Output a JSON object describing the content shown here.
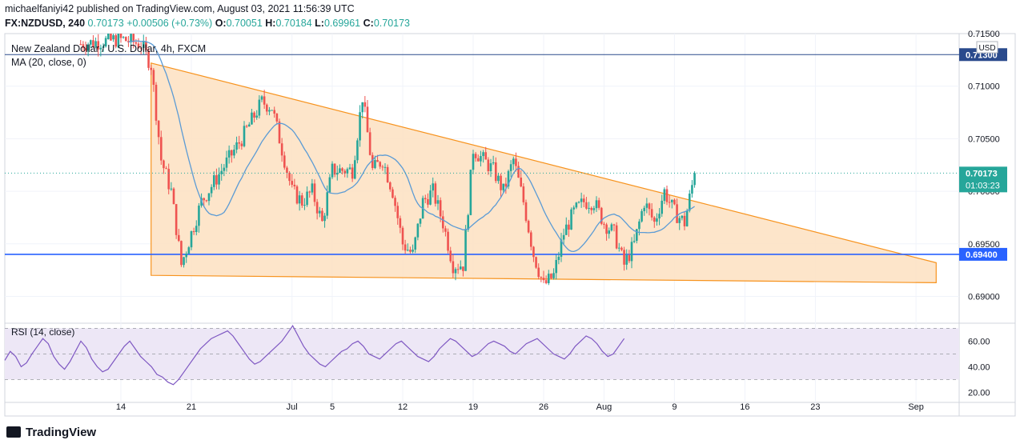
{
  "header": {
    "publish_line": "michaelfaniyi42 published on TradingView.com, August 03, 2021 11:56:39 UTC",
    "symbol": "FX:NZDUSD, 240",
    "last": "0.70173",
    "change": "+0.00506 (+0.73%)",
    "o_label": "O:",
    "o": "0.70051",
    "h_label": "H:",
    "h": "0.70184",
    "l_label": "L:",
    "l": "0.69961",
    "c_label": "C:",
    "c": "0.70173"
  },
  "legend": {
    "title": "New Zealand Dollar / U.S. Dollar, 4h, FXCM",
    "ma": "MA (20, close, 0)",
    "rsi": "RSI (14, close)"
  },
  "footer": {
    "brand": "TradingView"
  },
  "colors": {
    "up": "#26a69a",
    "down": "#ef5350",
    "ma": "#5b9bd5",
    "triangle_fill": "#fde2c4",
    "triangle_stroke": "#f7931e",
    "support": "#2962ff",
    "resistance": "#2a4a8c",
    "rsi": "#7e57c2",
    "rsi_band": "#ede7f6"
  },
  "chart_data": [
    {
      "type": "candlestick",
      "title": "New Zealand Dollar / U.S. Dollar, 4h, FXCM",
      "currency": "USD",
      "x_ticks": [
        "14",
        "21",
        "Jul",
        "5",
        "12",
        "19",
        "26",
        "Aug",
        "9",
        "16",
        "23",
        "Sep"
      ],
      "y_ticks": [
        "0.71500",
        "0.71000",
        "0.70500",
        "0.70000",
        "0.69500",
        "0.69000"
      ],
      "ylim": [
        0.6876,
        0.715
      ],
      "last_price": {
        "label": "0.70173",
        "value": 0.70173,
        "countdown": "01:03:23"
      },
      "horizontal_lines": [
        {
          "label": "0.71300",
          "value": 0.713
        },
        {
          "label": "0.69400",
          "value": 0.694
        }
      ],
      "triangle": [
        {
          "x": "Jun 17",
          "y": 0.7122
        },
        {
          "x": "Sep 3",
          "y": 0.6932
        },
        {
          "x": "Sep 3",
          "y": 0.6913
        },
        {
          "x": "Jun 17",
          "y": 0.692
        }
      ],
      "close_path": [
        {
          "x": "Jun 10",
          "y": 0.714
        },
        {
          "x": "Jun 14",
          "y": 0.7145
        },
        {
          "x": "Jun 16",
          "y": 0.714
        },
        {
          "x": "Jun 17",
          "y": 0.712
        },
        {
          "x": "Jun 18",
          "y": 0.703
        },
        {
          "x": "Jun 19",
          "y": 0.7
        },
        {
          "x": "Jun 20",
          "y": 0.693
        },
        {
          "x": "Jun 21",
          "y": 0.696
        },
        {
          "x": "Jun 22",
          "y": 0.699
        },
        {
          "x": "Jun 24",
          "y": 0.702
        },
        {
          "x": "Jun 26",
          "y": 0.705
        },
        {
          "x": "Jun 28",
          "y": 0.7085
        },
        {
          "x": "Jun 29",
          "y": 0.708
        },
        {
          "x": "Jun 30",
          "y": 0.704
        },
        {
          "x": "Jul 1",
          "y": 0.7
        },
        {
          "x": "Jul 2",
          "y": 0.699
        },
        {
          "x": "Jul 3",
          "y": 0.7
        },
        {
          "x": "Jul 4",
          "y": 0.697
        },
        {
          "x": "Jul 5",
          "y": 0.702
        },
        {
          "x": "Jul 7",
          "y": 0.702
        },
        {
          "x": "Jul 8",
          "y": 0.709
        },
        {
          "x": "Jul 9",
          "y": 0.702
        },
        {
          "x": "Jul 10",
          "y": 0.703
        },
        {
          "x": "Jul 11",
          "y": 0.7
        },
        {
          "x": "Jul 12",
          "y": 0.695
        },
        {
          "x": "Jul 13",
          "y": 0.694
        },
        {
          "x": "Jul 14",
          "y": 0.699
        },
        {
          "x": "Jul 15",
          "y": 0.7
        },
        {
          "x": "Jul 16",
          "y": 0.697
        },
        {
          "x": "Jul 17",
          "y": 0.693
        },
        {
          "x": "Jul 18",
          "y": 0.693
        },
        {
          "x": "Jul 19",
          "y": 0.704
        },
        {
          "x": "Jul 20",
          "y": 0.703
        },
        {
          "x": "Jul 21",
          "y": 0.702
        },
        {
          "x": "Jul 22",
          "y": 0.7
        },
        {
          "x": "Jul 23",
          "y": 0.703
        },
        {
          "x": "Jul 24",
          "y": 0.699
        },
        {
          "x": "Jul 25",
          "y": 0.694
        },
        {
          "x": "Jul 26",
          "y": 0.691
        },
        {
          "x": "Jul 27",
          "y": 0.692
        },
        {
          "x": "Jul 28",
          "y": 0.696
        },
        {
          "x": "Jul 29",
          "y": 0.698
        },
        {
          "x": "Jul 30",
          "y": 0.699
        },
        {
          "x": "Jul 31",
          "y": 0.699
        },
        {
          "x": "Aug 1",
          "y": 0.697
        },
        {
          "x": "Aug 2",
          "y": 0.696
        },
        {
          "x": "Aug 3",
          "y": 0.693
        },
        {
          "x": "Aug 4",
          "y": 0.695
        },
        {
          "x": "Aug 5",
          "y": 0.699
        },
        {
          "x": "Aug 6",
          "y": 0.697
        },
        {
          "x": "Aug 7",
          "y": 0.7
        },
        {
          "x": "Aug 8",
          "y": 0.698
        },
        {
          "x": "Aug 9",
          "y": 0.697
        },
        {
          "x": "Aug 10",
          "y": 0.7017
        }
      ]
    },
    {
      "type": "line",
      "title": "RSI (14, close)",
      "y_ticks": [
        "60.00",
        "40.00",
        "20.00"
      ],
      "ylim": [
        14,
        74
      ],
      "bands": [
        30,
        50,
        70
      ],
      "values": [
        45,
        52,
        48,
        40,
        43,
        50,
        56,
        62,
        58,
        48,
        42,
        38,
        44,
        52,
        60,
        55,
        46,
        40,
        36,
        38,
        44,
        50,
        56,
        60,
        54,
        48,
        44,
        40,
        34,
        32,
        28,
        26,
        30,
        36,
        42,
        48,
        54,
        58,
        62,
        64,
        66,
        68,
        64,
        58,
        52,
        46,
        42,
        44,
        48,
        52,
        56,
        60,
        66,
        72,
        64,
        56,
        50,
        46,
        42,
        40,
        44,
        48,
        52,
        54,
        58,
        60,
        56,
        50,
        48,
        46,
        50,
        54,
        58,
        60,
        56,
        52,
        48,
        46,
        44,
        48,
        54,
        58,
        62,
        60,
        56,
        52,
        48,
        50,
        54,
        58,
        60,
        58,
        56,
        52,
        50,
        54,
        58,
        60,
        62,
        58,
        54,
        50,
        48,
        46,
        50,
        56,
        60,
        64,
        62,
        58,
        52,
        48,
        50,
        56,
        62
      ],
      "end_label": "Aug 3"
    }
  ]
}
